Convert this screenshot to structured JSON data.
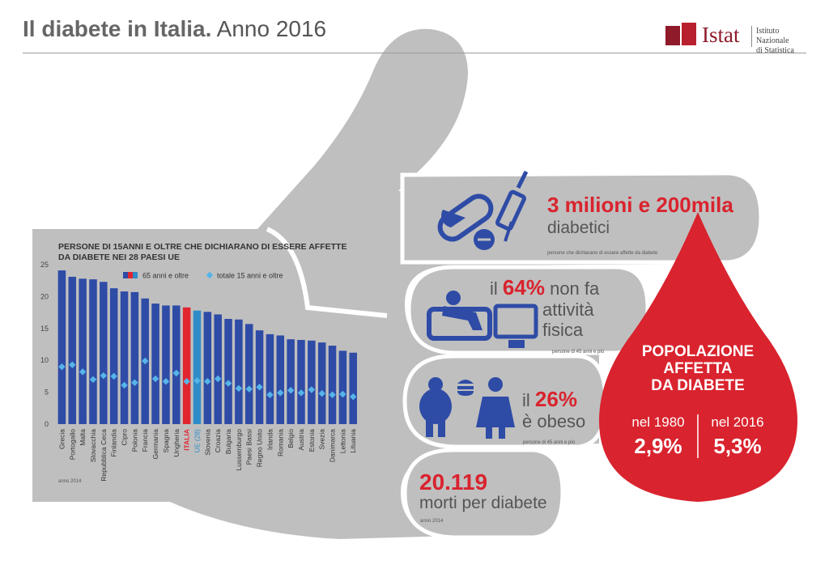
{
  "header": {
    "title_bold": "Il diabete in Italia.",
    "title_light": "Anno 2016",
    "logo_name": "Istat",
    "logo_sub_1": "Istituto Nazionale",
    "logo_sub_2": "di Statistica"
  },
  "colors": {
    "bar": "#2e4ba6",
    "italy_bar": "#e0252f",
    "eu_bar": "#2f8cc8",
    "marker": "#56b4e9",
    "grey_panel": "#bfbfbf",
    "red": "#d9232e"
  },
  "chart_data": {
    "type": "bar",
    "title": "PERSONE DI 15ANNI E OLTRE CHE DICHIARANO DI ESSERE AFFETTE DA DIABETE NEI 28 PAESI UE",
    "categories": [
      "Grecia",
      "Portogallo",
      "Malta",
      "Slovacchia",
      "Repubblica Ceca",
      "Finlandia",
      "Cipro",
      "Polonia",
      "Francia",
      "Germania",
      "Spagna",
      "Ungheria",
      "ITALIA",
      "UE (28)",
      "Slovenia",
      "Croazia",
      "Bulgaria",
      "Lussemburgo",
      "Paesi Bassi",
      "Regno Unito",
      "Irlanda",
      "Romania",
      "Belgio",
      "Austria",
      "Estonia",
      "Svezia",
      "Danimarca",
      "Lettonia",
      "Lituania"
    ],
    "series": [
      {
        "name": "65 anni e oltre",
        "values": [
          24.1,
          23.1,
          22.8,
          22.7,
          22.3,
          21.3,
          20.8,
          20.7,
          19.7,
          18.9,
          18.6,
          18.6,
          18.3,
          17.8,
          17.6,
          17.2,
          16.5,
          16.4,
          15.7,
          14.7,
          14.1,
          13.9,
          13.3,
          13.2,
          13.1,
          12.8,
          12.3,
          11.5,
          11.2
        ]
      },
      {
        "name": "totale 15 anni e oltre",
        "values": [
          9.0,
          9.3,
          8.2,
          7.0,
          7.6,
          7.5,
          6.1,
          6.5,
          9.9,
          7.1,
          6.7,
          8.0,
          6.7,
          6.8,
          6.7,
          7.1,
          6.4,
          5.6,
          5.5,
          5.8,
          4.6,
          4.9,
          5.3,
          4.9,
          5.4,
          4.8,
          4.6,
          4.7,
          4.3
        ]
      }
    ],
    "yticks": [
      "0",
      "5",
      "10",
      "15",
      "20",
      "25"
    ],
    "ylim": [
      0,
      25
    ],
    "note": "anno 2014"
  },
  "stats": {
    "diabetici_number": "3 milioni e 200mila",
    "diabetici_label": "diabetici",
    "diabetici_note": "persone che dichiarano di essere affette da diabete",
    "inattivi_pre": "il",
    "inattivi_pct": "64%",
    "inattivi_post": "non fa",
    "inattivi_line2": "attività",
    "inattivi_line3": "fisica",
    "inattivi_note": "persone di 45 anni e più",
    "obesi_pre": "il",
    "obesi_pct": "26%",
    "obesi_line2": "è obeso",
    "obesi_note": "persone di 45 anni e più",
    "morti_number": "20.119",
    "morti_label": "morti per diabete",
    "morti_note": "anno 2014"
  },
  "drop": {
    "title_1": "POPOLAZIONE",
    "title_2": "AFFETTA",
    "title_3": "DA DIABETE",
    "left_label": "nel 1980",
    "left_value": "2,9%",
    "right_label": "nel 2016",
    "right_value": "5,3%"
  }
}
